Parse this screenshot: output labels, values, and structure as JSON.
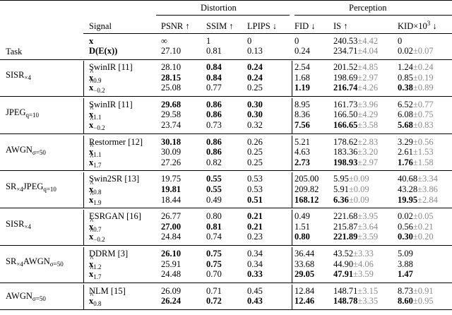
{
  "header": {
    "distortion": "Distortion",
    "perception": "Perception",
    "signal": "Signal",
    "task": "Task",
    "cols": [
      "PSNR ↑",
      "SSIM ↑",
      "LPIPS ↓",
      "FID ↓",
      "IS ↑",
      "KID×10³ ↓"
    ]
  },
  "top_rows": [
    {
      "signal": "x",
      "cells": [
        [
          "∞",
          ""
        ],
        [
          "1",
          ""
        ],
        [
          "0",
          ""
        ],
        [
          "0",
          ""
        ],
        [
          "240.53",
          "±4.42"
        ],
        [
          "0",
          ""
        ]
      ]
    },
    {
      "signal": "D(E(x))",
      "cells": [
        [
          "27.10",
          ""
        ],
        [
          "0.81",
          ""
        ],
        [
          "0.13",
          ""
        ],
        [
          "0.24",
          ""
        ],
        [
          "234.71",
          "±4.04"
        ],
        [
          "0.02",
          "±0.07"
        ]
      ]
    }
  ],
  "groups": [
    {
      "task": "SISR",
      "task_sub": "×4",
      "rows": [
        {
          "signal": "SwinIR [11]",
          "cells": [
            [
              "28.10",
              "",
              0
            ],
            [
              "0.84",
              "",
              1
            ],
            [
              "0.24",
              "",
              1
            ],
            [
              "2.54",
              "",
              0
            ],
            [
              "201.52",
              "±4.85",
              0
            ],
            [
              "1.24",
              "±0.24",
              0
            ]
          ]
        },
        {
          "signal": "x̂",
          "sub": "0.9",
          "cells": [
            [
              "28.15",
              "",
              1
            ],
            [
              "0.84",
              "",
              1
            ],
            [
              "0.24",
              "",
              1
            ],
            [
              "1.68",
              "",
              0
            ],
            [
              "198.69",
              "±2.97",
              0
            ],
            [
              "0.85",
              "±0.19",
              0
            ]
          ]
        },
        {
          "signal": "x̂",
          "sub": "−0.2",
          "cells": [
            [
              "25.08",
              "",
              0
            ],
            [
              "0.77",
              "",
              0
            ],
            [
              "0.25",
              "",
              0
            ],
            [
              "1.19",
              "",
              1
            ],
            [
              "216.74",
              "±4.26",
              1
            ],
            [
              "0.38",
              "±0.89",
              1
            ]
          ]
        }
      ]
    },
    {
      "task": "JPEG",
      "task_sub": "q=10",
      "rows": [
        {
          "signal": "SwinIR [11]",
          "cells": [
            [
              "29.68",
              "",
              1
            ],
            [
              "0.86",
              "",
              1
            ],
            [
              "0.30",
              "",
              1
            ],
            [
              "8.95",
              "",
              0
            ],
            [
              "161.73",
              "±3.96",
              0
            ],
            [
              "6.52",
              "±0.77",
              0
            ]
          ]
        },
        {
          "signal": "x̂",
          "sub": "1.1",
          "cells": [
            [
              "29.58",
              "",
              0
            ],
            [
              "0.86",
              "",
              1
            ],
            [
              "0.30",
              "",
              1
            ],
            [
              "8.36",
              "",
              0
            ],
            [
              "166.50",
              "±4.29",
              0
            ],
            [
              "6.08",
              "±0.75",
              0
            ]
          ]
        },
        {
          "signal": "x̂",
          "sub": "−0.2",
          "cells": [
            [
              "23.74",
              "",
              0
            ],
            [
              "0.73",
              "",
              0
            ],
            [
              "0.32",
              "",
              0
            ],
            [
              "7.56",
              "",
              1
            ],
            [
              "166.65",
              "±3.58",
              1
            ],
            [
              "5.68",
              "±0.83",
              1
            ]
          ]
        }
      ]
    },
    {
      "task": "AWGN",
      "task_sub": "σ=50",
      "rows": [
        {
          "signal": "Restormer [12]",
          "cells": [
            [
              "30.18",
              "",
              1
            ],
            [
              "0.86",
              "",
              1
            ],
            [
              "0.26",
              "",
              0
            ],
            [
              "5.21",
              "",
              0
            ],
            [
              "178.62",
              "±2.83",
              0
            ],
            [
              "3.29",
              "±0.56",
              0
            ]
          ]
        },
        {
          "signal": "x̂",
          "sub": "1.1",
          "cells": [
            [
              "30.09",
              "",
              0
            ],
            [
              "0.86",
              "",
              1
            ],
            [
              "0.25",
              "",
              0
            ],
            [
              "4.63",
              "",
              0
            ],
            [
              "183.36",
              "±3.20",
              0
            ],
            [
              "2.61",
              "±1.53",
              0
            ]
          ]
        },
        {
          "signal": "x̂",
          "sub": "1.7",
          "cells": [
            [
              "27.26",
              "",
              0
            ],
            [
              "0.82",
              "",
              0
            ],
            [
              "0.25",
              "",
              0
            ],
            [
              "2.73",
              "",
              1
            ],
            [
              "198.93",
              "±2.97",
              1
            ],
            [
              "1.76",
              "±1.58",
              1
            ]
          ]
        }
      ]
    },
    {
      "task": "SR",
      "task_sub": "×4",
      "task2": "JPEG",
      "task2_sub": "q=10",
      "rows": [
        {
          "signal": "Swin2SR [13]",
          "cells": [
            [
              "19.75",
              "",
              0
            ],
            [
              "0.55",
              "",
              1
            ],
            [
              "0.53",
              "",
              0
            ],
            [
              "205.00",
              "",
              0
            ],
            [
              "5.95",
              "±0.09",
              0
            ],
            [
              "40.68",
              "±3.34",
              0
            ]
          ]
        },
        {
          "signal": "x̂",
          "sub": "0.8",
          "cells": [
            [
              "19.81",
              "",
              1
            ],
            [
              "0.55",
              "",
              1
            ],
            [
              "0.53",
              "",
              0
            ],
            [
              "209.82",
              "",
              0
            ],
            [
              "5.91",
              "±0.09",
              0
            ],
            [
              "43.28",
              "±3.86",
              0
            ]
          ]
        },
        {
          "signal": "x̂",
          "sub": "1.9",
          "cells": [
            [
              "18.44",
              "",
              0
            ],
            [
              "0.49",
              "",
              0
            ],
            [
              "0.51",
              "",
              1
            ],
            [
              "168.12",
              "",
              1
            ],
            [
              "6.36",
              "±0.09",
              1
            ],
            [
              "19.95",
              "±2.84",
              1
            ]
          ]
        }
      ]
    },
    {
      "task": "SISR",
      "task_sub": "×4",
      "rows": [
        {
          "signal": "ESRGAN [16]",
          "cells": [
            [
              "26.77",
              "",
              0
            ],
            [
              "0.80",
              "",
              0
            ],
            [
              "0.21",
              "",
              1
            ],
            [
              "0.49",
              "",
              0
            ],
            [
              "221.68",
              "±3.95",
              0
            ],
            [
              "0.02",
              "±0.05",
              0
            ]
          ]
        },
        {
          "signal": "x̂",
          "sub": "0.7",
          "cells": [
            [
              "27.00",
              "",
              1
            ],
            [
              "0.81",
              "",
              1
            ],
            [
              "0.21",
              "",
              1
            ],
            [
              "1.51",
              "",
              0
            ],
            [
              "215.87",
              "±3.64",
              0
            ],
            [
              "0.56",
              "±0.21",
              0
            ]
          ]
        },
        {
          "signal": "x̂",
          "sub": "−0.2",
          "cells": [
            [
              "24.84",
              "",
              0
            ],
            [
              "0.74",
              "",
              0
            ],
            [
              "0.23",
              "",
              0
            ],
            [
              "0.80",
              "",
              1
            ],
            [
              "221.89",
              "±3.59",
              1
            ],
            [
              "0.30",
              "±0.20",
              1
            ]
          ]
        }
      ]
    },
    {
      "task": "SR",
      "task_sub": "×4",
      "task2": "AWGN",
      "task2_sub": "σ=50",
      "rows": [
        {
          "signal": "DDRM [3]",
          "cells": [
            [
              "26.10",
              "",
              1
            ],
            [
              "0.75",
              "",
              1
            ],
            [
              "0.34",
              "",
              0
            ],
            [
              "36.44",
              "",
              0
            ],
            [
              "43.52",
              "±3.33",
              0
            ],
            [
              "5.09",
              "",
              0
            ]
          ]
        },
        {
          "signal": "x̂",
          "sub": "1.2",
          "cells": [
            [
              "25.91",
              "",
              0
            ],
            [
              "0.75",
              "",
              1
            ],
            [
              "0.34",
              "",
              0
            ],
            [
              "33.68",
              "",
              0
            ],
            [
              "44.90",
              "±4.06",
              0
            ],
            [
              "3.88",
              "",
              0
            ]
          ]
        },
        {
          "signal": "x̂",
          "sub": "1.7",
          "cells": [
            [
              "24.48",
              "",
              0
            ],
            [
              "0.70",
              "",
              0
            ],
            [
              "0.33",
              "",
              1
            ],
            [
              "29.05",
              "",
              1
            ],
            [
              "47.91",
              "±3.59",
              1
            ],
            [
              "1.47",
              "",
              1
            ]
          ]
        }
      ]
    },
    {
      "task": "AWGN",
      "task_sub": "σ=50",
      "rows": [
        {
          "signal": "NLM [15]",
          "cells": [
            [
              "26.09",
              "",
              0
            ],
            [
              "0.71",
              "",
              0
            ],
            [
              "0.45",
              "",
              0
            ],
            [
              "12.84",
              "",
              0
            ],
            [
              "148.71",
              "±3.15",
              0
            ],
            [
              "8.73",
              "±0.91",
              0
            ]
          ]
        },
        {
          "signal": "x̂",
          "sub": "0.8",
          "cells": [
            [
              "26.24",
              "",
              1
            ],
            [
              "0.72",
              "",
              1
            ],
            [
              "0.43",
              "",
              1
            ],
            [
              "12.46",
              "",
              1
            ],
            [
              "148.78",
              "±3.35",
              1
            ],
            [
              "8.60",
              "±0.95",
              1
            ]
          ]
        }
      ]
    }
  ]
}
